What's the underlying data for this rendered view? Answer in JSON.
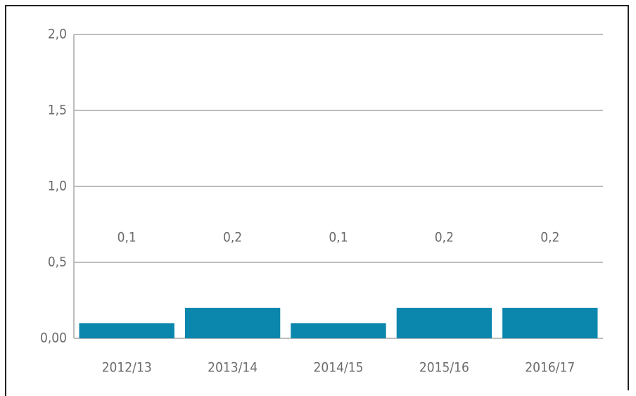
{
  "chart_data": {
    "type": "bar",
    "categories": [
      "2012/13",
      "2013/14",
      "2014/15",
      "2015/16",
      "2016/17"
    ],
    "values": [
      0.1,
      0.2,
      0.1,
      0.2,
      0.2
    ],
    "value_labels": [
      "0,1",
      "0,2",
      "0,1",
      "0,2",
      "0,2"
    ],
    "color": "#0b86ad",
    "ylim": [
      0,
      2
    ],
    "yticks": [
      {
        "value": 0,
        "label": "0,00"
      },
      {
        "value": 0.5,
        "label": "0,5"
      },
      {
        "value": 1,
        "label": "1,0"
      },
      {
        "value": 1.5,
        "label": "1,5"
      },
      {
        "value": 2,
        "label": "2,0"
      }
    ],
    "grid": true
  }
}
